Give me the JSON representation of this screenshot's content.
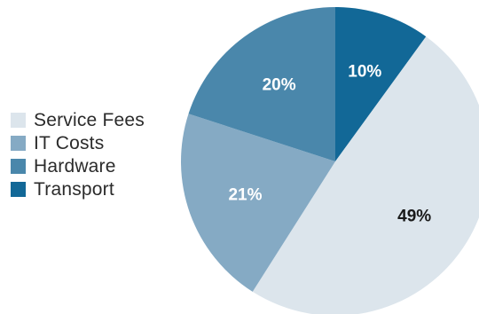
{
  "chart_data": {
    "type": "pie",
    "title": "",
    "start_angle_deg": 0,
    "direction": "clockwise",
    "legend_position": "left",
    "slices": [
      {
        "label": "Transport",
        "value": 10,
        "display": "10%",
        "color": "#126897",
        "label_color": "#ffffff"
      },
      {
        "label": "Service Fees",
        "value": 49,
        "display": "49%",
        "color": "#dce5ec",
        "label_color": "#1a1a1a"
      },
      {
        "label": "IT Costs",
        "value": 21,
        "display": "21%",
        "color": "#85aac4",
        "label_color": "#ffffff"
      },
      {
        "label": "Hardware",
        "value": 20,
        "display": "20%",
        "color": "#4a87ab",
        "label_color": "#ffffff"
      }
    ],
    "legend": [
      {
        "label": "Service Fees",
        "color": "#dce5ec"
      },
      {
        "label": "IT Costs",
        "color": "#85aac4"
      },
      {
        "label": "Hardware",
        "color": "#4a87ab"
      },
      {
        "label": "Transport",
        "color": "#126897"
      }
    ]
  }
}
